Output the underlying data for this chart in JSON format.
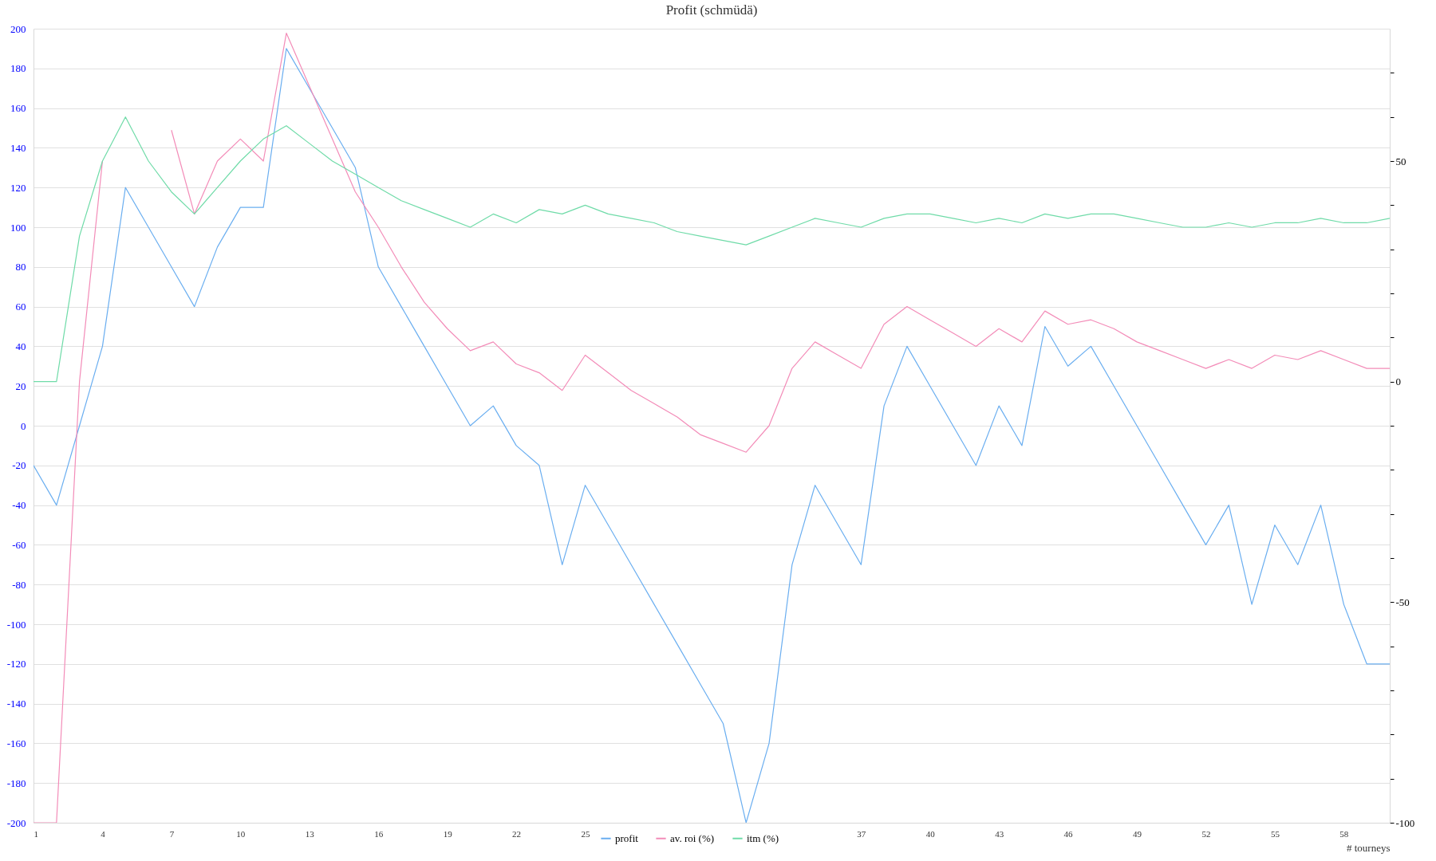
{
  "chart_data": {
    "type": "line",
    "title": "Profit  (schmüdä)",
    "xlabel": "# tourneys",
    "x": [
      1,
      2,
      3,
      4,
      5,
      6,
      7,
      8,
      9,
      10,
      11,
      12,
      13,
      14,
      15,
      16,
      17,
      18,
      19,
      20,
      21,
      22,
      23,
      24,
      25,
      26,
      27,
      28,
      29,
      30,
      31,
      32,
      33,
      34,
      35,
      36,
      37,
      38,
      39,
      40,
      41,
      42,
      43,
      44,
      45,
      46,
      47,
      48,
      49,
      50,
      51,
      52,
      53,
      54,
      55,
      56,
      57,
      58,
      59,
      60
    ],
    "series": [
      {
        "name": "profit",
        "color": "#6aaef0",
        "values": [
          -20,
          -40,
          0,
          40,
          120,
          100,
          80,
          60,
          90,
          110,
          110,
          190,
          170,
          150,
          130,
          80,
          60,
          40,
          20,
          0,
          10,
          -10,
          -20,
          -70,
          -30,
          -50,
          -70,
          -90,
          -110,
          -130,
          -150,
          -200,
          -160,
          -70,
          -30,
          -50,
          -70,
          10,
          40,
          20,
          0,
          -20,
          10,
          -10,
          50,
          30,
          40,
          20,
          0,
          -20,
          -40,
          -60,
          -40,
          -90,
          -50,
          -70,
          -40,
          -90,
          -120,
          -120
        ]
      },
      {
        "name": "av. roi (%)",
        "color": "#f38cb8",
        "axis": "y2",
        "values": [
          -100,
          -100,
          0,
          50,
          null,
          null,
          57,
          38,
          50,
          55,
          50,
          79,
          67,
          55,
          43,
          35,
          26,
          18,
          12,
          7,
          9,
          4,
          2,
          -2,
          6,
          2,
          -2,
          -5,
          -8,
          -12,
          -14,
          -16,
          -10,
          3,
          9,
          6,
          3,
          13,
          17,
          14,
          11,
          8,
          12,
          9,
          16,
          13,
          14,
          12,
          9,
          7,
          5,
          3,
          5,
          3,
          6,
          5,
          7,
          5,
          3,
          3
        ]
      },
      {
        "name": "itm (%)",
        "color": "#6fdba8",
        "axis": "y2",
        "values": [
          0,
          0,
          33,
          50,
          60,
          50,
          43,
          38,
          44,
          50,
          55,
          58,
          54,
          50,
          47,
          44,
          41,
          39,
          37,
          35,
          38,
          36,
          39,
          38,
          40,
          38,
          37,
          36,
          34,
          33,
          32,
          31,
          33,
          35,
          37,
          36,
          35,
          37,
          38,
          38,
          37,
          36,
          37,
          36,
          38,
          37,
          38,
          38,
          37,
          36,
          35,
          35,
          36,
          35,
          36,
          36,
          37,
          36,
          36,
          37
        ]
      }
    ],
    "xlim": [
      1,
      60
    ],
    "xticks": [
      1,
      4,
      7,
      10,
      13,
      16,
      19,
      22,
      25,
      37,
      40,
      43,
      46,
      49,
      52,
      55,
      58
    ],
    "ylim": [
      -200,
      200
    ],
    "yticks": [
      -200,
      -180,
      -160,
      -140,
      -120,
      -100,
      -80,
      -60,
      -40,
      -20,
      0,
      20,
      40,
      60,
      80,
      100,
      120,
      140,
      160,
      180,
      200
    ],
    "y2lim": [
      -100,
      80
    ],
    "y2ticks": [
      -100,
      {
        "value": -90,
        "label": null
      },
      {
        "value": -80,
        "label": null
      },
      {
        "value": -70,
        "label": null
      },
      {
        "value": -60,
        "label": null
      },
      -50,
      {
        "value": -40,
        "label": null
      },
      {
        "value": -30,
        "label": null
      },
      {
        "value": -20,
        "label": null
      },
      {
        "value": -10,
        "label": null
      },
      0,
      {
        "value": 10,
        "label": null
      },
      {
        "value": 20,
        "label": null
      },
      {
        "value": 30,
        "label": null
      },
      {
        "value": 40,
        "label": null
      },
      50,
      {
        "value": 60,
        "label": null
      },
      {
        "value": 70,
        "label": null
      }
    ],
    "grid": "y",
    "legend": "bottom",
    "marker": "none",
    "line_style": "solid"
  }
}
